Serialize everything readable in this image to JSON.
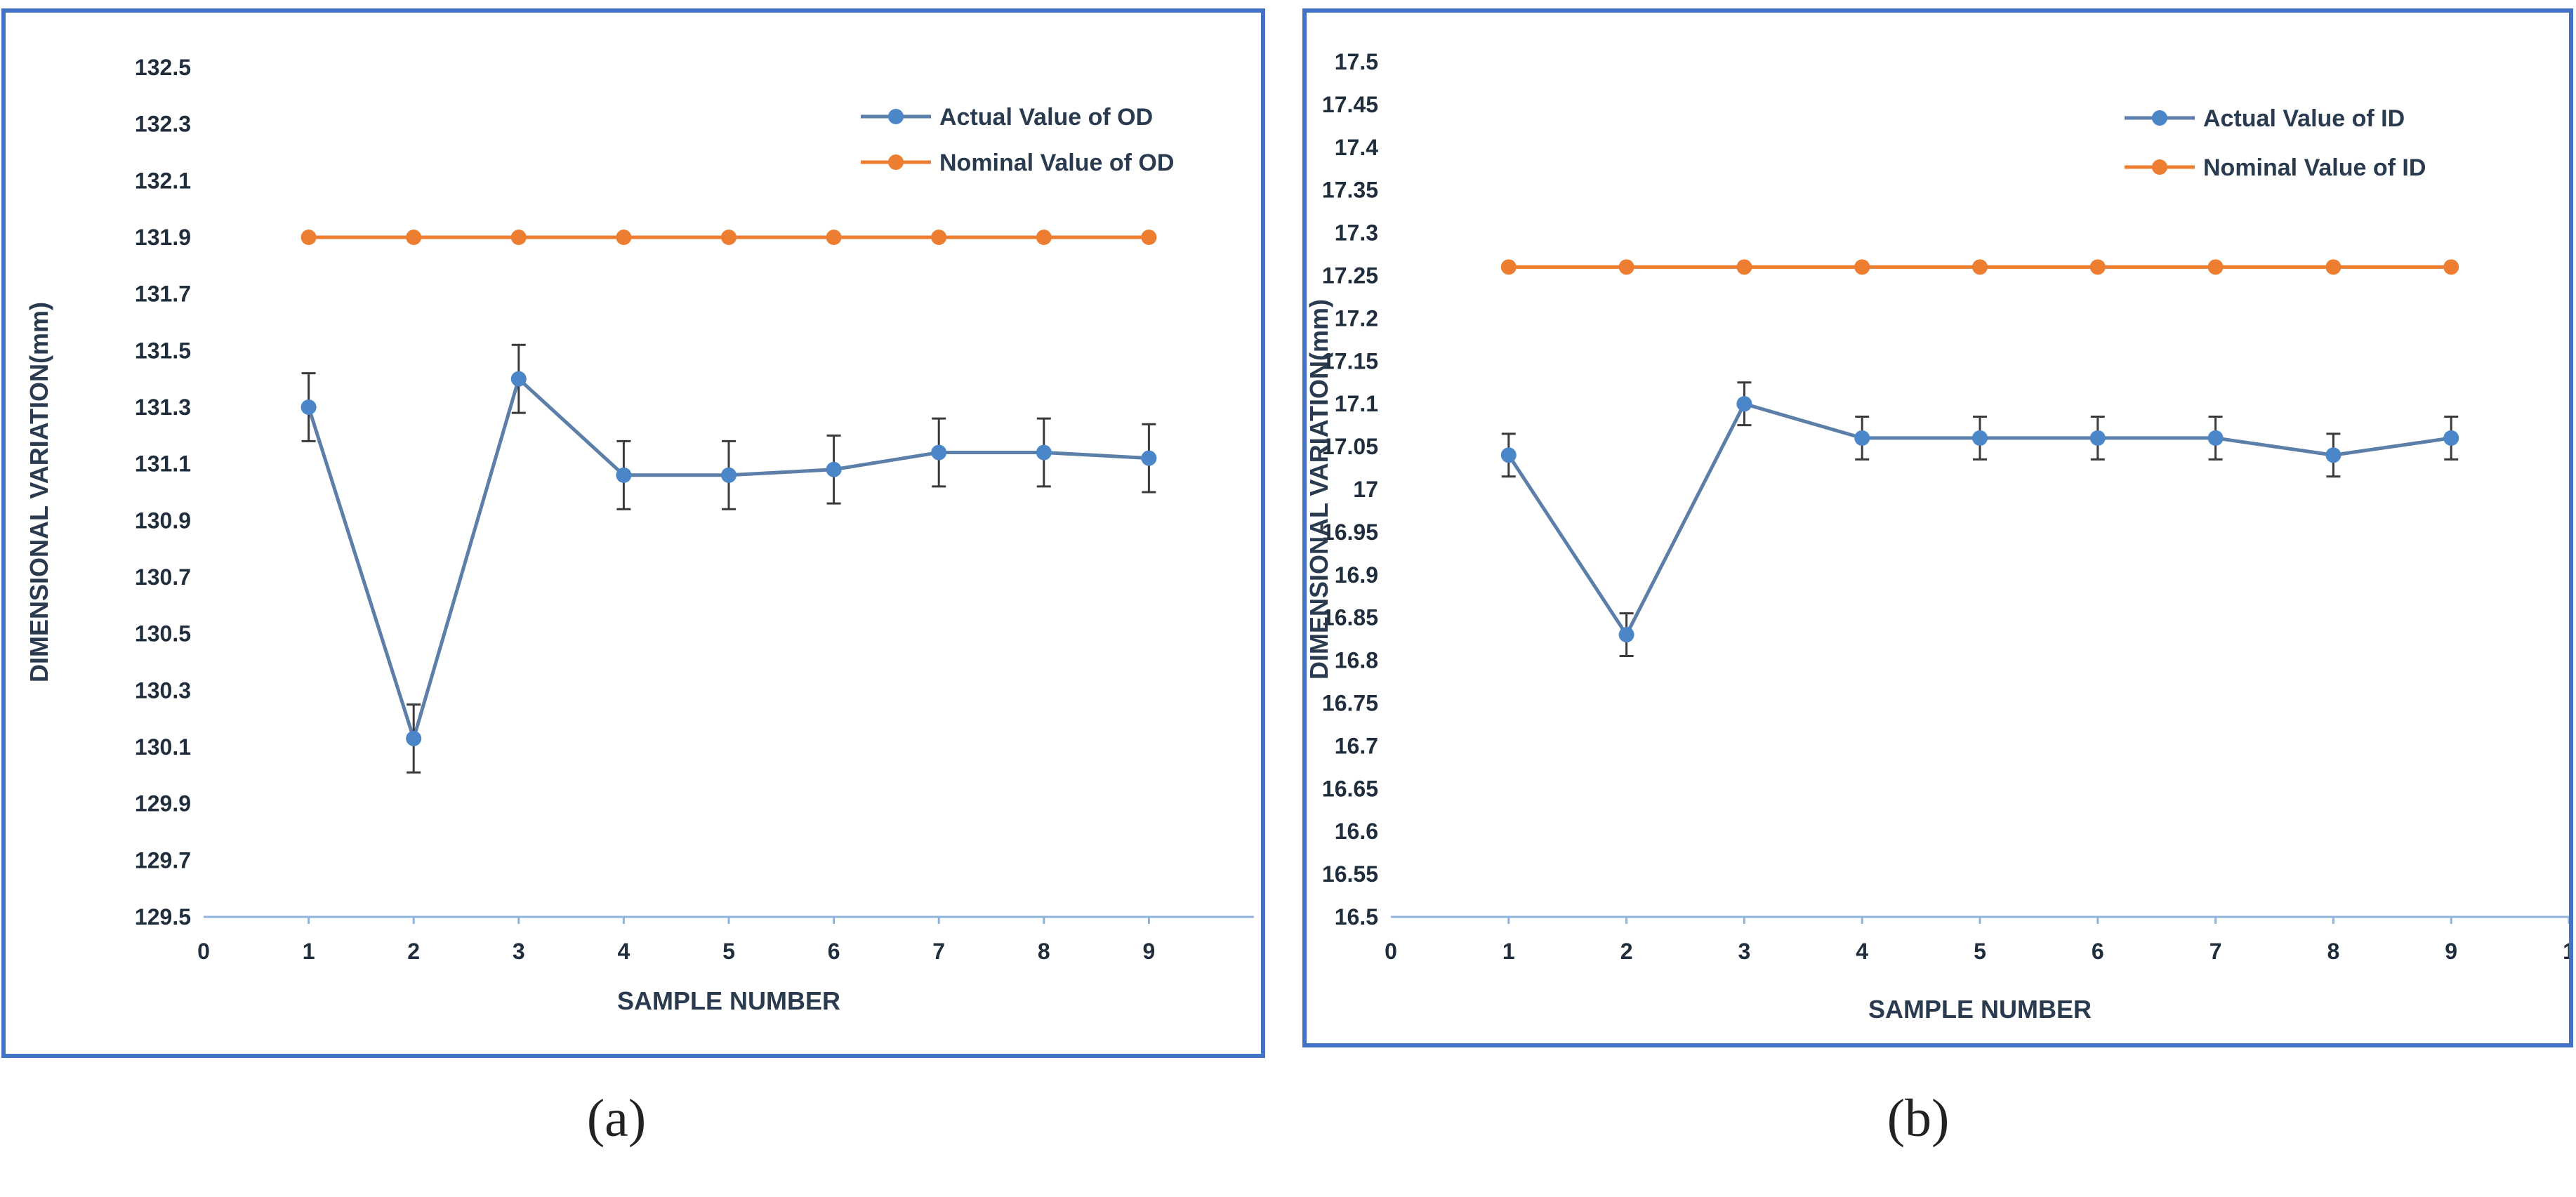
{
  "colors": {
    "actual": "#4a86c8",
    "actual_line": "#5b7fa8",
    "nominal": "#ed7d31",
    "frame": "#4472c4",
    "axis": "#8fb4dc"
  },
  "captions": {
    "a": "(a)",
    "b": "(b)"
  },
  "chart_data": [
    {
      "type": "line",
      "xlabel": "SAMPLE NUMBER",
      "ylabel": "DIMENSIONAL VARIATION(mm)",
      "xlim": [
        0,
        10
      ],
      "xticks": [
        "0",
        "1",
        "2",
        "3",
        "4",
        "5",
        "6",
        "7",
        "8",
        "9"
      ],
      "ylim": [
        129.5,
        132.5
      ],
      "yticks": [
        "129.5",
        "129.7",
        "129.9",
        "130.1",
        "130.3",
        "130.5",
        "130.7",
        "130.9",
        "131.1",
        "131.3",
        "131.5",
        "131.7",
        "131.9",
        "132.1",
        "132.3",
        "132.5"
      ],
      "legend_position": "top-right",
      "series": [
        {
          "name": "Actual Value of OD",
          "x": [
            1,
            2,
            3,
            4,
            5,
            6,
            7,
            8,
            9
          ],
          "values": [
            131.3,
            130.13,
            131.4,
            131.06,
            131.06,
            131.08,
            131.14,
            131.14,
            131.12
          ],
          "error": 0.12,
          "color_key": "actual"
        },
        {
          "name": "Nominal Value of OD",
          "x": [
            1,
            2,
            3,
            4,
            5,
            6,
            7,
            8,
            9
          ],
          "values": [
            131.9,
            131.9,
            131.9,
            131.9,
            131.9,
            131.9,
            131.9,
            131.9,
            131.9
          ],
          "color_key": "nominal"
        }
      ]
    },
    {
      "type": "line",
      "xlabel": "SAMPLE NUMBER",
      "ylabel": "DIMENSIONAL VARIATION(mm)",
      "xlim": [
        0,
        10
      ],
      "xticks": [
        "0",
        "1",
        "2",
        "3",
        "4",
        "5",
        "6",
        "7",
        "8",
        "9",
        "1"
      ],
      "ylim": [
        16.5,
        17.5
      ],
      "yticks": [
        "16.5",
        "16.55",
        "16.6",
        "16.65",
        "16.7",
        "16.75",
        "16.8",
        "16.85",
        "16.9",
        "16.95",
        "17",
        "17.05",
        "17.1",
        "17.15",
        "17.2",
        "17.25",
        "17.3",
        "17.35",
        "17.4",
        "17.45",
        "17.5"
      ],
      "legend_position": "top-right",
      "series": [
        {
          "name": "Actual Value of ID",
          "x": [
            1,
            2,
            3,
            4,
            5,
            6,
            7,
            8,
            9
          ],
          "values": [
            17.04,
            16.83,
            17.1,
            17.06,
            17.06,
            17.06,
            17.06,
            17.04,
            17.06
          ],
          "error": 0.025,
          "color_key": "actual"
        },
        {
          "name": "Nominal Value of ID",
          "x": [
            1,
            2,
            3,
            4,
            5,
            6,
            7,
            8,
            9
          ],
          "values": [
            17.26,
            17.26,
            17.26,
            17.26,
            17.26,
            17.26,
            17.26,
            17.26,
            17.26
          ],
          "color_key": "nominal"
        }
      ]
    }
  ]
}
